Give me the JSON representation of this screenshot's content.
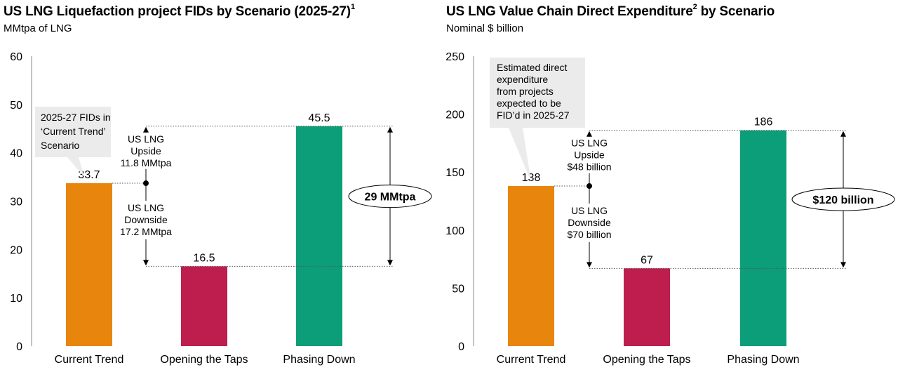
{
  "charts": [
    {
      "title": "US LNG Liquefaction project FIDs by Scenario (2025-27)",
      "title_sup": "1",
      "subtitle": "MMtpa of LNG",
      "bubble_text": [
        "2025-27 FIDs in",
        "‘Current Trend’",
        "Scenario"
      ],
      "upside_text": [
        "US LNG",
        "Upside",
        "11.8 MMtpa"
      ],
      "downside_text": [
        "US LNG",
        "Downside",
        "17.2 MMtpa"
      ],
      "range_label": "29 MMtpa"
    },
    {
      "title_pre": "US LNG Value Chain Direct Expenditure",
      "title_sup": "2",
      "title_post": " by Scenario",
      "subtitle": "Nominal $ billion",
      "bubble_text": [
        "Estimated direct",
        "expenditure",
        "from projects",
        "expected to be",
        "FID’d in 2025-27"
      ],
      "upside_text": [
        "US LNG",
        "Upside",
        "$48 billion"
      ],
      "downside_text": [
        "US LNG",
        "Downside",
        "$70 billion"
      ],
      "range_label": "$120 billion"
    }
  ],
  "chart_data": [
    {
      "type": "bar",
      "title": "US LNG Liquefaction project FIDs by Scenario (2025-27)",
      "ylabel": "MMtpa of LNG",
      "categories": [
        "Current Trend",
        "Opening the Taps",
        "Phasing Down"
      ],
      "values": [
        33.7,
        16.5,
        45.5
      ],
      "value_labels": [
        "33.7",
        "16.5",
        "45.5"
      ],
      "ylim": [
        0,
        60
      ],
      "yticks": [
        0,
        10,
        20,
        30,
        40,
        50,
        60
      ],
      "colors": [
        "#e8850c",
        "#be1e4e",
        "#0c9e78"
      ],
      "grid": false,
      "legend": "none"
    },
    {
      "type": "bar",
      "title": "US LNG Value Chain Direct Expenditure by Scenario",
      "ylabel": "Nominal $ billion",
      "categories": [
        "Current Trend",
        "Opening the Taps",
        "Phasing Down"
      ],
      "values": [
        138,
        67,
        186
      ],
      "value_labels": [
        "138",
        "67",
        "186"
      ],
      "ylim": [
        0,
        250
      ],
      "yticks": [
        0,
        50,
        100,
        150,
        200,
        250
      ],
      "colors": [
        "#e8850c",
        "#be1e4e",
        "#0c9e78"
      ],
      "grid": false,
      "legend": "none"
    }
  ]
}
